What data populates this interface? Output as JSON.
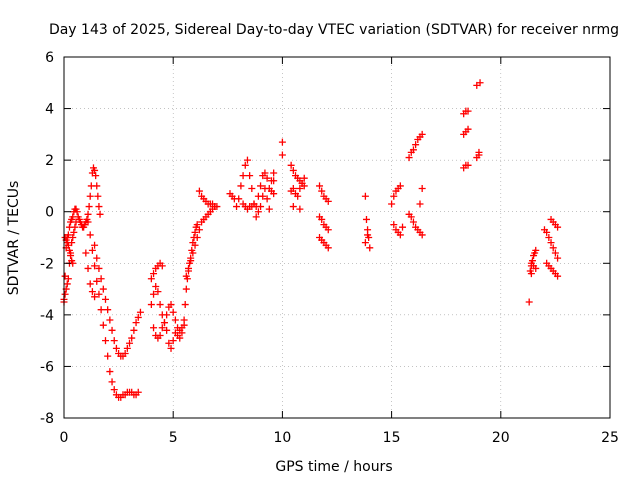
{
  "chart_data": {
    "type": "scatter",
    "title": "Day 143 of 2025, Sidereal Day-to-day VTEC variation (SDTVAR) for receiver nrmg",
    "xlabel": "GPS time / hours",
    "ylabel": "SDTVAR / TECUs",
    "xlim": [
      0,
      25
    ],
    "ylim": [
      -8,
      6
    ],
    "xticks": [
      0,
      5,
      10,
      15,
      20,
      25
    ],
    "yticks": [
      -8,
      -6,
      -4,
      -2,
      0,
      2,
      4,
      6
    ],
    "grid": true,
    "marker": "+",
    "color": "#ff0000",
    "series": [
      {
        "x": [
          0.0,
          0.05,
          0.1,
          0.15,
          0.2,
          0.25,
          0.3,
          0.35,
          0.4,
          0.45,
          0.5,
          0.55,
          0.6,
          0.65,
          0.7,
          0.75,
          0.8,
          0.85,
          0.9,
          0.95,
          1.0,
          1.05,
          1.1,
          1.15,
          1.2,
          1.25,
          1.3,
          1.35,
          1.4,
          1.45,
          1.5,
          1.55,
          1.6,
          1.65,
          0.0,
          0.05,
          0.1,
          0.15,
          0.2,
          0.25,
          0.3,
          0.35,
          0.4,
          0.45,
          0.5,
          0.55,
          0.05,
          0.1,
          0.15,
          0.2,
          0.25,
          0.3,
          0.35,
          0.4,
          1.1,
          1.2,
          1.3,
          1.4,
          1.5,
          1.6,
          1.7,
          1.8,
          1.9,
          2.0,
          2.1,
          2.2,
          2.3,
          2.4,
          2.5,
          2.6,
          2.7,
          2.8,
          2.9,
          3.0,
          3.1,
          3.2,
          3.3,
          3.4,
          1.4,
          1.5,
          1.6,
          1.7,
          1.8,
          1.9,
          2.0,
          2.1,
          2.2,
          2.3,
          2.4,
          2.5,
          2.6,
          2.7,
          2.8,
          2.9,
          3.0,
          3.1,
          3.2,
          3.3,
          3.4,
          3.5,
          1.0,
          1.1,
          1.2,
          1.3,
          1.4,
          4.0,
          4.1,
          4.2,
          4.3,
          4.4,
          4.5,
          4.6,
          4.7,
          4.8,
          4.9,
          5.0,
          5.1,
          5.2,
          5.3,
          5.4,
          5.5,
          4.1,
          4.2,
          4.3,
          4.4,
          4.5,
          4.6,
          4.7,
          4.8,
          4.9,
          5.0,
          5.1,
          5.2,
          5.3,
          5.4,
          4.0,
          4.1,
          4.2,
          4.3,
          4.4,
          4.5,
          5.5,
          5.55,
          5.6,
          5.65,
          5.7,
          5.75,
          5.8,
          5.85,
          5.9,
          5.95,
          6.0,
          6.05,
          6.1,
          5.6,
          5.7,
          5.8,
          5.9,
          6.0,
          6.1,
          6.2,
          6.2,
          6.3,
          6.4,
          6.5,
          6.6,
          6.7,
          6.8,
          6.9,
          7.0,
          6.3,
          6.4,
          6.5,
          6.6,
          6.7,
          6.8,
          6.9,
          7.6,
          7.7,
          7.8,
          7.9,
          8.0,
          8.1,
          8.2,
          8.3,
          8.4,
          8.5,
          8.6,
          8.7,
          8.8,
          8.9,
          9.0,
          9.1,
          9.2,
          9.3,
          9.4,
          9.5,
          9.6,
          8.2,
          8.3,
          8.4,
          8.5,
          8.6,
          8.7,
          8.8,
          8.9,
          9.0,
          9.1,
          9.2,
          9.3,
          9.4,
          9.5,
          9.6,
          9.6,
          10.0,
          10.0,
          10.4,
          10.5,
          10.6,
          10.7,
          10.8,
          10.9,
          11.0,
          10.4,
          10.5,
          10.6,
          10.7,
          10.8,
          10.9,
          11.0,
          10.5,
          10.8,
          11.7,
          11.8,
          11.9,
          12.0,
          12.1,
          11.7,
          11.8,
          11.9,
          12.0,
          12.1,
          11.7,
          11.8,
          11.9,
          12.0,
          12.1,
          13.8,
          13.85,
          13.9,
          13.95,
          14.0,
          13.8,
          13.9,
          15.0,
          15.1,
          15.2,
          15.3,
          15.4,
          15.5,
          15.1,
          15.2,
          15.3,
          15.4,
          15.8,
          15.9,
          16.0,
          16.1,
          16.2,
          16.3,
          16.4,
          15.8,
          15.9,
          16.0,
          16.1,
          16.2,
          16.3,
          16.4,
          16.3,
          16.4,
          18.3,
          18.4,
          18.5,
          18.3,
          18.4,
          18.5,
          18.3,
          18.4,
          18.5,
          18.9,
          19.0,
          19.05,
          18.9,
          19.0,
          21.3,
          21.35,
          21.4,
          21.45,
          21.5,
          21.55,
          21.6,
          21.4,
          21.5,
          21.6,
          21.4,
          22.0,
          22.1,
          22.2,
          22.3,
          22.4,
          22.5,
          22.6,
          22.1,
          22.2,
          22.3,
          22.4,
          22.5,
          22.6,
          22.3,
          22.4,
          22.5,
          22.6
        ],
        "y": [
          -3.4,
          -2.5,
          -1.4,
          -1.0,
          -0.9,
          -0.6,
          -0.4,
          -0.3,
          -0.2,
          0.0,
          0.1,
          0.1,
          0.0,
          -0.2,
          -0.3,
          -0.4,
          -0.5,
          -0.6,
          -0.6,
          -0.5,
          -0.4,
          -0.3,
          -0.1,
          0.2,
          0.6,
          1.0,
          1.5,
          1.7,
          1.6,
          1.4,
          1.0,
          0.6,
          0.2,
          -0.1,
          -3.5,
          -3.2,
          -3.0,
          -2.8,
          -2.6,
          -2.0,
          -1.6,
          -1.2,
          -1.0,
          -0.8,
          -0.6,
          -0.4,
          -1.0,
          -1.1,
          -1.2,
          -1.3,
          -1.5,
          -1.7,
          -1.9,
          -2.0,
          -0.4,
          -0.9,
          -1.5,
          -2.1,
          -2.7,
          -3.2,
          -3.8,
          -4.4,
          -5.0,
          -5.6,
          -6.2,
          -6.6,
          -6.9,
          -7.1,
          -7.2,
          -7.2,
          -7.1,
          -7.1,
          -7.0,
          -7.0,
          -7.0,
          -7.1,
          -7.1,
          -7.0,
          -1.3,
          -1.8,
          -2.2,
          -2.6,
          -3.0,
          -3.4,
          -3.8,
          -4.2,
          -4.6,
          -5.0,
          -5.3,
          -5.5,
          -5.6,
          -5.6,
          -5.5,
          -5.3,
          -5.1,
          -4.9,
          -4.6,
          -4.3,
          -4.1,
          -3.9,
          -1.6,
          -2.2,
          -2.8,
          -3.1,
          -3.3,
          -3.6,
          -3.2,
          -2.9,
          -3.1,
          -3.6,
          -4.0,
          -4.3,
          -4.0,
          -3.7,
          -3.6,
          -3.9,
          -4.2,
          -4.5,
          -4.6,
          -4.5,
          -4.4,
          -4.5,
          -4.8,
          -4.9,
          -4.8,
          -4.5,
          -4.3,
          -4.6,
          -5.1,
          -5.3,
          -5.0,
          -4.7,
          -4.8,
          -4.9,
          -4.7,
          -2.6,
          -2.4,
          -2.2,
          -2.1,
          -2.0,
          -2.1,
          -4.2,
          -3.6,
          -3.0,
          -2.6,
          -2.3,
          -2.0,
          -1.8,
          -1.5,
          -1.2,
          -1.0,
          -0.8,
          -0.6,
          -0.5,
          -2.5,
          -2.2,
          -1.9,
          -1.6,
          -1.3,
          -1.0,
          -0.7,
          0.8,
          0.6,
          0.5,
          0.4,
          0.3,
          0.3,
          0.3,
          0.2,
          0.2,
          -0.4,
          -0.3,
          -0.2,
          -0.1,
          0.0,
          0.1,
          0.2,
          0.7,
          0.6,
          0.5,
          0.2,
          0.5,
          1.0,
          1.4,
          1.8,
          2.0,
          1.4,
          0.9,
          0.3,
          0.2,
          0.6,
          1.0,
          1.4,
          1.5,
          1.3,
          0.9,
          1.2,
          1.5,
          0.3,
          0.2,
          0.1,
          0.2,
          0.2,
          0.3,
          -0.2,
          0.0,
          0.2,
          0.6,
          0.9,
          0.5,
          0.1,
          0.8,
          0.7,
          1.2,
          2.7,
          2.2,
          1.8,
          1.6,
          1.4,
          1.3,
          1.2,
          1.1,
          1.0,
          0.8,
          0.9,
          0.7,
          0.6,
          0.9,
          1.1,
          1.3,
          0.2,
          0.1,
          1.0,
          0.8,
          0.6,
          0.5,
          0.4,
          -0.2,
          -0.3,
          -0.5,
          -0.6,
          -0.7,
          -1.0,
          -1.1,
          -1.2,
          -1.3,
          -1.4,
          0.6,
          -0.3,
          -0.7,
          -1.0,
          -1.4,
          -1.2,
          -0.9,
          0.3,
          -0.5,
          -0.7,
          -0.8,
          -0.9,
          -0.6,
          0.6,
          0.8,
          0.9,
          1.0,
          2.1,
          2.3,
          2.4,
          2.6,
          2.8,
          2.9,
          3.0,
          -0.1,
          -0.2,
          -0.4,
          -0.6,
          -0.7,
          -0.8,
          -0.9,
          0.3,
          0.9,
          3.0,
          3.1,
          3.2,
          3.8,
          3.9,
          3.9,
          1.7,
          1.8,
          1.8,
          2.1,
          2.2,
          5.0,
          4.9,
          2.3,
          -3.5,
          -2.3,
          -2.1,
          -1.9,
          -1.7,
          -1.6,
          -1.5,
          -2.0,
          -2.1,
          -2.2,
          -2.4,
          -0.7,
          -0.8,
          -1.0,
          -1.2,
          -1.4,
          -1.6,
          -1.8,
          -2.0,
          -2.1,
          -2.2,
          -2.3,
          -2.4,
          -2.5,
          -0.3,
          -0.4,
          -0.5,
          -0.6
        ]
      }
    ]
  }
}
